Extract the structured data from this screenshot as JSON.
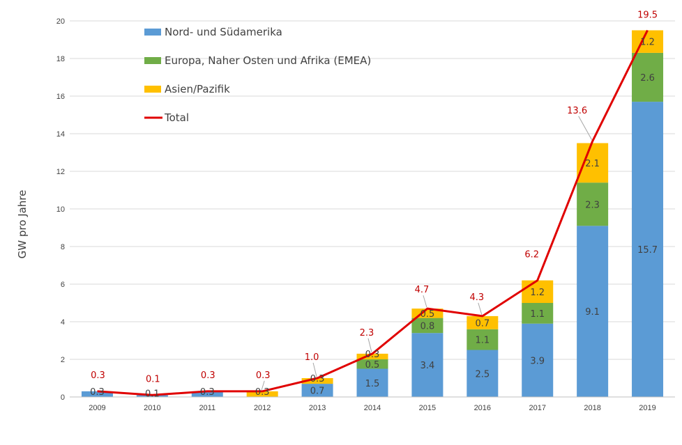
{
  "chart_data": {
    "type": "bar",
    "stacked": true,
    "categories": [
      "2009",
      "2010",
      "2011",
      "2012",
      "2013",
      "2014",
      "2015",
      "2016",
      "2017",
      "2018",
      "2019"
    ],
    "ylabel": "GW pro Jahre",
    "ylim": [
      0,
      20
    ],
    "yticks": [
      "0",
      "2",
      "4",
      "6",
      "8",
      "10",
      "12",
      "14",
      "16",
      "18",
      "20"
    ],
    "grid": true,
    "legend_position": "top-left",
    "series": [
      {
        "name": "Nord- und Südamerika",
        "color": "#5b9bd5",
        "values": [
          0.3,
          0.1,
          0.3,
          0,
          0.7,
          1.5,
          3.4,
          2.5,
          3.9,
          9.1,
          15.7
        ],
        "labels": [
          "0.3",
          "0.1",
          "0.3",
          "",
          "0.7",
          "1.5",
          "3.4",
          "2.5",
          "3.9",
          "9.1",
          "15.7"
        ]
      },
      {
        "name": "Europa, Naher Osten und Afrika (EMEA)",
        "color": "#70ad47",
        "values": [
          0,
          0,
          0,
          0,
          0,
          0.5,
          0.8,
          1.1,
          1.1,
          2.3,
          2.6
        ],
        "labels": [
          "",
          "",
          "",
          "",
          "",
          "0.5",
          "0.8",
          "1.1",
          "1.1",
          "2.3",
          "2.6"
        ]
      },
      {
        "name": "Asien/Pazifik",
        "color": "#ffc000",
        "values": [
          0,
          0,
          0,
          0.3,
          0.3,
          0.3,
          0.5,
          0.7,
          1.2,
          2.1,
          1.2
        ],
        "labels": [
          "",
          "",
          "",
          "0.3",
          "0.3",
          "0.3",
          "0.5",
          "0.7",
          "1.2",
          "2.1",
          "1.2"
        ]
      }
    ],
    "total": {
      "name": "Total",
      "type": "line",
      "color": "#e00000",
      "label_color": "#c00000",
      "values": [
        0.3,
        0.1,
        0.3,
        0.3,
        1.0,
        2.3,
        4.7,
        4.3,
        6.2,
        13.6,
        19.5
      ],
      "labels": [
        "0.3",
        "0.1",
        "0.3",
        "0.3",
        "1.0",
        "2.3",
        "4.7",
        "4.3",
        "6.2",
        "13.6",
        "19.5"
      ]
    }
  }
}
